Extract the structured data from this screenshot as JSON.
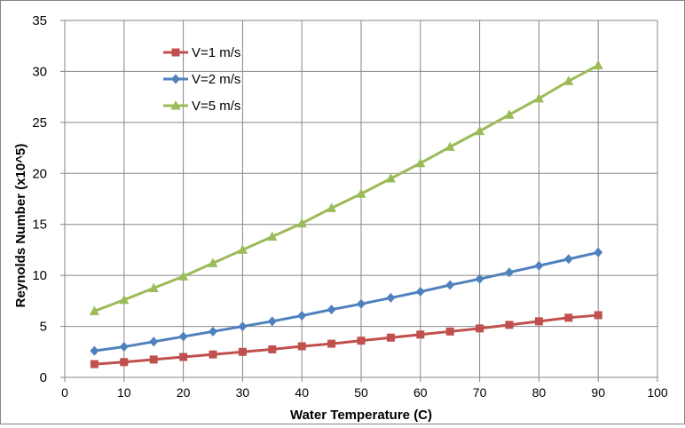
{
  "chart_data": {
    "type": "line",
    "title": "",
    "xlabel": "Water Temperature (C)",
    "ylabel": "Reynolds Number (x10^5)",
    "xlim": [
      0,
      100
    ],
    "ylim": [
      0,
      35
    ],
    "x_ticks": [
      0,
      10,
      20,
      30,
      40,
      50,
      60,
      70,
      80,
      90,
      100
    ],
    "y_ticks": [
      0,
      5,
      10,
      15,
      20,
      25,
      30,
      35
    ],
    "grid": true,
    "legend_position": "top-left",
    "x": [
      5,
      10,
      15,
      20,
      25,
      30,
      35,
      40,
      45,
      50,
      55,
      60,
      65,
      70,
      75,
      80,
      85,
      90
    ],
    "series": [
      {
        "name": "V=1 m/s",
        "color": "#c0504d",
        "marker": "square",
        "values": [
          1.3,
          1.5,
          1.75,
          2.0,
          2.25,
          2.5,
          2.75,
          3.05,
          3.3,
          3.6,
          3.9,
          4.2,
          4.5,
          4.8,
          5.15,
          5.5,
          5.85,
          6.1
        ]
      },
      {
        "name": "V=2 m/s",
        "color": "#4f81bd",
        "marker": "diamond",
        "values": [
          2.6,
          3.0,
          3.5,
          4.0,
          4.5,
          5.0,
          5.5,
          6.05,
          6.65,
          7.2,
          7.8,
          8.4,
          9.05,
          9.65,
          10.3,
          10.95,
          11.6,
          12.25
        ]
      },
      {
        "name": "V=5 m/s",
        "color": "#9bbb59",
        "marker": "triangle",
        "values": [
          6.5,
          7.6,
          8.75,
          9.9,
          11.2,
          12.5,
          13.8,
          15.1,
          16.6,
          18.0,
          19.5,
          21.0,
          22.6,
          24.15,
          25.75,
          27.35,
          29.05,
          30.6
        ]
      }
    ]
  }
}
